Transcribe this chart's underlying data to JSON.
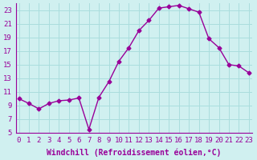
{
  "x": [
    0,
    1,
    2,
    3,
    4,
    5,
    6,
    7,
    8,
    9,
    10,
    11,
    12,
    13,
    14,
    15,
    16,
    17,
    18,
    19,
    20,
    21,
    22,
    23
  ],
  "y": [
    10.0,
    9.3,
    8.5,
    9.3,
    9.7,
    9.8,
    10.1,
    5.5,
    10.2,
    12.5,
    15.5,
    17.5,
    20.0,
    21.5,
    23.3,
    23.5,
    23.7,
    23.2,
    22.7,
    18.8,
    17.5,
    15.0,
    14.8,
    13.8
  ],
  "xlabel": "Windchill (Refroidissement éolien,°C)",
  "ylim": [
    5,
    24
  ],
  "xlim": [
    -0.3,
    23.3
  ],
  "yticks": [
    5,
    7,
    9,
    11,
    13,
    15,
    17,
    19,
    21,
    23
  ],
  "xticks": [
    0,
    1,
    2,
    3,
    4,
    5,
    6,
    7,
    8,
    9,
    10,
    11,
    12,
    13,
    14,
    15,
    16,
    17,
    18,
    19,
    20,
    21,
    22,
    23
  ],
  "line_color": "#990099",
  "marker": "D",
  "marker_size": 2.5,
  "bg_color": "#d0f0f0",
  "grid_color": "#aadddd",
  "xlabel_fontsize": 7,
  "tick_fontsize": 6.5
}
